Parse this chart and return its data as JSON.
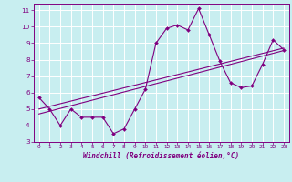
{
  "xlabel": "Windchill (Refroidissement éolien,°C)",
  "bg_color": "#c8eef0",
  "line_color": "#800080",
  "grid_color": "#ffffff",
  "xlim": [
    -0.5,
    23.5
  ],
  "ylim": [
    3,
    11.4
  ],
  "xticks": [
    0,
    1,
    2,
    3,
    4,
    5,
    6,
    7,
    8,
    9,
    10,
    11,
    12,
    13,
    14,
    15,
    16,
    17,
    18,
    19,
    20,
    21,
    22,
    23
  ],
  "yticks": [
    3,
    4,
    5,
    6,
    7,
    8,
    9,
    10,
    11
  ],
  "series1_x": [
    0,
    1,
    2,
    3,
    4,
    5,
    6,
    7,
    8,
    9,
    10,
    11,
    12,
    13,
    14,
    15,
    16,
    17,
    18,
    19,
    20,
    21,
    22,
    23
  ],
  "series1_y": [
    5.7,
    5.0,
    4.0,
    5.0,
    4.5,
    4.5,
    4.5,
    3.5,
    3.8,
    5.0,
    6.2,
    9.0,
    9.9,
    10.1,
    9.8,
    11.1,
    9.5,
    7.9,
    6.6,
    6.3,
    6.4,
    7.7,
    9.2,
    8.6
  ],
  "series2_x": [
    0,
    23
  ],
  "series2_y": [
    4.7,
    8.55
  ],
  "series3_x": [
    0,
    23
  ],
  "series3_y": [
    5.0,
    8.7
  ]
}
